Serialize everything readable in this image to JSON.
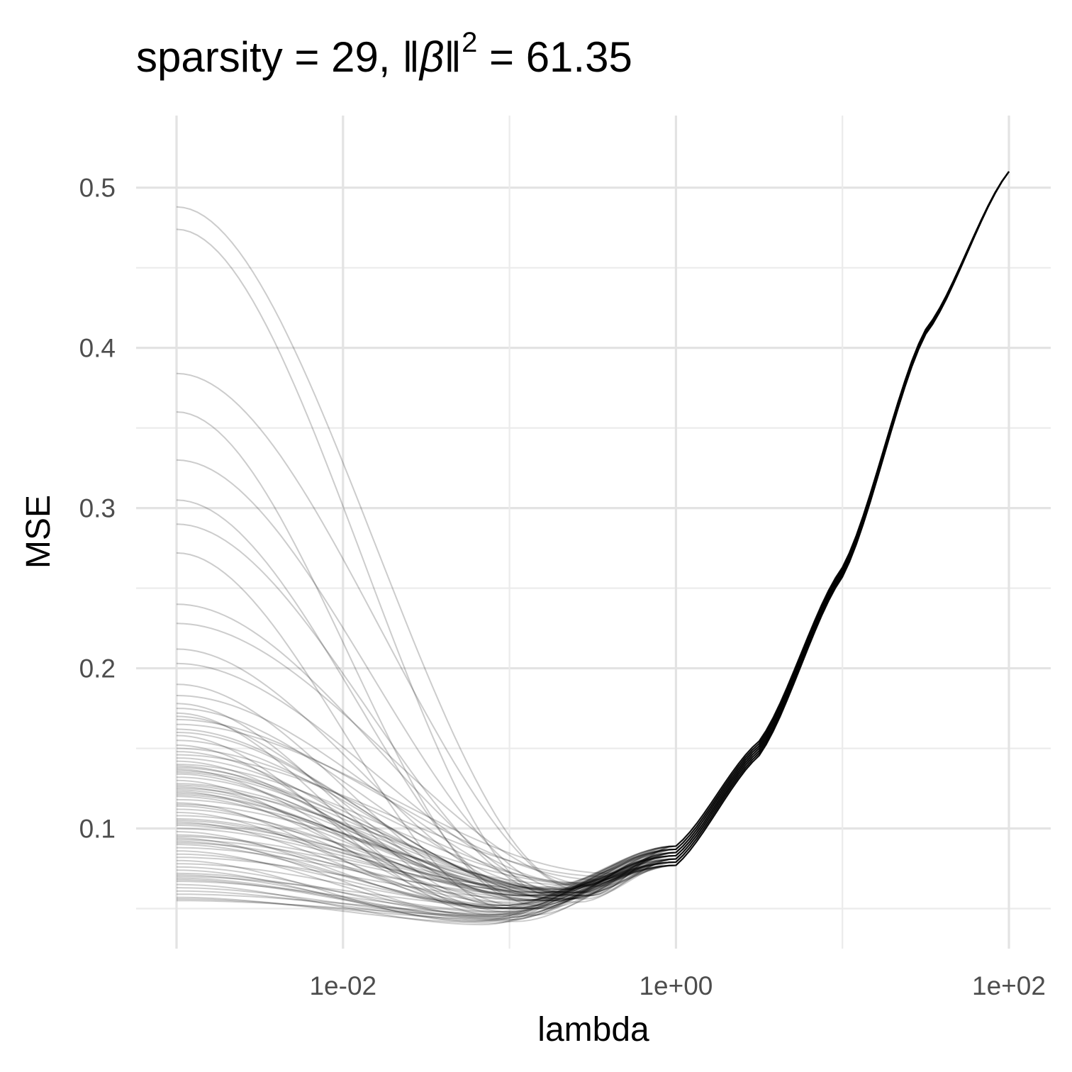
{
  "chart_data": {
    "type": "line",
    "title": {
      "prefix": "sparsity = 29, ",
      "norm_symbol": "β",
      "norm_exponent": "2",
      "suffix": " = 61.35"
    },
    "xlabel": "lambda",
    "ylabel": "MSE",
    "x_scale": "log10",
    "xlim": [
      0.001,
      100
    ],
    "ylim": [
      0.025,
      0.545
    ],
    "x_ticks": [
      {
        "value": 0.01,
        "label": "1e-02"
      },
      {
        "value": 1,
        "label": "1e+00"
      },
      {
        "value": 100,
        "label": "1e+02"
      }
    ],
    "y_ticks": [
      {
        "value": 0.1,
        "label": "0.1"
      },
      {
        "value": 0.2,
        "label": "0.2"
      },
      {
        "value": 0.3,
        "label": "0.3"
      },
      {
        "value": 0.4,
        "label": "0.4"
      },
      {
        "value": 0.5,
        "label": "0.5"
      }
    ],
    "x_minor_grid": [
      0.1,
      10
    ],
    "y_minor_grid": [
      0.05,
      0.15,
      0.25,
      0.35,
      0.45
    ],
    "grid": true,
    "legend": "none",
    "line_color": "#000000",
    "line_opacity": 0.2,
    "series_start_mse": [
      0.488,
      0.474,
      0.384,
      0.36,
      0.33,
      0.305,
      0.29,
      0.272,
      0.24,
      0.228,
      0.212,
      0.203,
      0.19,
      0.183,
      0.178,
      0.175,
      0.172,
      0.17,
      0.168,
      0.165,
      0.162,
      0.16,
      0.158,
      0.155,
      0.152,
      0.15,
      0.148,
      0.146,
      0.144,
      0.142,
      0.14,
      0.139,
      0.138,
      0.137,
      0.136,
      0.135,
      0.134,
      0.132,
      0.13,
      0.128,
      0.127,
      0.126,
      0.125,
      0.124,
      0.123,
      0.122,
      0.121,
      0.12,
      0.118,
      0.116,
      0.115,
      0.114,
      0.112,
      0.11,
      0.108,
      0.106,
      0.105,
      0.104,
      0.103,
      0.102,
      0.1,
      0.098,
      0.096,
      0.095,
      0.094,
      0.093,
      0.092,
      0.091,
      0.09,
      0.088,
      0.086,
      0.084,
      0.082,
      0.08,
      0.078,
      0.076,
      0.074,
      0.072,
      0.071,
      0.07,
      0.069,
      0.068,
      0.067,
      0.065,
      0.063,
      0.061,
      0.059,
      0.057,
      0.056,
      0.055
    ],
    "series_min_mse": [
      0.064,
      0.058,
      0.06,
      0.055,
      0.062,
      0.052,
      0.058,
      0.05,
      0.056,
      0.064,
      0.06,
      0.066,
      0.055,
      0.058,
      0.052,
      0.062,
      0.048,
      0.05,
      0.068,
      0.072,
      0.06,
      0.056,
      0.046,
      0.054,
      0.048,
      0.064,
      0.058,
      0.07,
      0.062,
      0.058,
      0.066,
      0.055,
      0.06,
      0.052,
      0.058,
      0.063,
      0.06,
      0.056,
      0.05,
      0.06,
      0.062,
      0.058,
      0.065,
      0.06,
      0.054,
      0.056,
      0.062,
      0.058,
      0.06,
      0.05,
      0.065,
      0.055,
      0.058,
      0.052,
      0.06,
      0.062,
      0.055,
      0.05,
      0.058,
      0.063,
      0.056,
      0.05,
      0.053,
      0.058,
      0.046,
      0.06,
      0.05,
      0.055,
      0.052,
      0.058,
      0.045,
      0.05,
      0.055,
      0.042,
      0.05,
      0.046,
      0.042,
      0.048,
      0.044,
      0.05,
      0.045,
      0.043,
      0.047,
      0.04,
      0.044,
      0.042,
      0.046,
      0.041,
      0.043,
      0.045
    ],
    "series_min_lambda": [
      0.25,
      0.18,
      0.3,
      0.12,
      0.22,
      0.15,
      0.2,
      0.1,
      0.28,
      0.35,
      0.16,
      0.24,
      0.12,
      0.3,
      0.09,
      0.2,
      0.08,
      0.14,
      0.35,
      0.4,
      0.18,
      0.22,
      0.08,
      0.26,
      0.1,
      0.32,
      0.15,
      0.38,
      0.2,
      0.12,
      0.28,
      0.16,
      0.24,
      0.1,
      0.3,
      0.2,
      0.14,
      0.22,
      0.09,
      0.26,
      0.18,
      0.12,
      0.3,
      0.16,
      0.1,
      0.24,
      0.2,
      0.14,
      0.28,
      0.08,
      0.22,
      0.12,
      0.18,
      0.09,
      0.26,
      0.15,
      0.2,
      0.1,
      0.3,
      0.14,
      0.22,
      0.08,
      0.12,
      0.25,
      0.07,
      0.18,
      0.1,
      0.2,
      0.09,
      0.16,
      0.08,
      0.12,
      0.18,
      0.06,
      0.14,
      0.08,
      0.07,
      0.1,
      0.09,
      0.16,
      0.08,
      0.1,
      0.12,
      0.07,
      0.09,
      0.11,
      0.14,
      0.08,
      0.1,
      0.12
    ],
    "shared_tail": {
      "x": [
        1,
        3.16,
        10,
        31.6,
        100
      ],
      "y": [
        0.083,
        0.15,
        0.26,
        0.41,
        0.51
      ]
    }
  }
}
